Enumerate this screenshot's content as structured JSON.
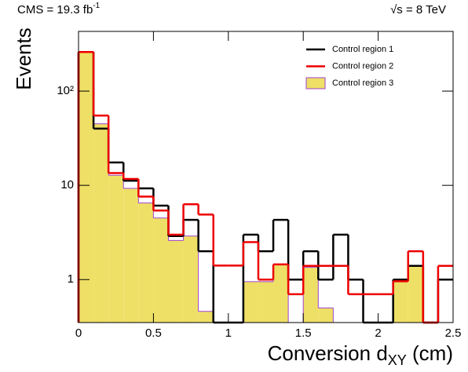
{
  "chart_data": {
    "type": "histogram",
    "title_left": [
      "CMS = 19.3 fb",
      "-1"
    ],
    "title_right": "√s = 8 TeV",
    "y_label": "Events",
    "x_label": [
      "Conversion d",
      "XY",
      " (cm)"
    ],
    "bins": [
      0,
      0.1,
      0.2,
      0.3,
      0.4,
      0.5,
      0.6,
      0.7,
      0.8,
      0.9,
      1,
      1.1,
      1.2,
      1.3,
      1.4,
      1.5,
      1.6,
      1.7,
      1.8,
      1.9,
      2,
      2.1,
      2.2,
      2.3,
      2.4,
      2.5
    ],
    "series": [
      {
        "name": "Control region 3",
        "color": "#eee066",
        "edge": "#a040d0",
        "fill": true,
        "values": [
          260,
          45,
          12.8,
          9.3,
          6.5,
          4.5,
          2.6,
          2.9,
          0.46,
          0,
          0,
          0.95,
          0.95,
          1.45,
          0,
          1.35,
          0.5,
          0,
          0,
          0,
          0,
          1.0,
          1.4,
          0,
          0
        ]
      },
      {
        "name": "Control region 1",
        "color": "#000000",
        "fill": false,
        "values": [
          260,
          40,
          17.5,
          11.2,
          9.3,
          6.1,
          2.9,
          4.3,
          2.0,
          0,
          0,
          3.0,
          2.0,
          4.3,
          1.0,
          2.0,
          1.0,
          3.0,
          1.0,
          0,
          0,
          1.0,
          1.4,
          0,
          1.0
        ]
      },
      {
        "name": "Control region 2",
        "color": "#ee0000",
        "fill": false,
        "values": [
          260,
          55,
          13.5,
          11.7,
          7.6,
          5.4,
          3.0,
          6.3,
          4.9,
          1.41,
          1.41,
          2.5,
          1.0,
          1.45,
          0.7,
          1.4,
          1.4,
          1.4,
          0.7,
          0.7,
          0.7,
          0.96,
          2.0,
          0,
          1.4
        ]
      }
    ],
    "legend_order": [
      1,
      2,
      0
    ],
    "xlim": [
      0,
      2.5
    ],
    "xticks": [
      0,
      0.5,
      1,
      1.5,
      2,
      2.5
    ],
    "ylim": [
      0.35,
      430
    ],
    "yticks": [
      1,
      10,
      {
        "value": 100,
        "label": "10²"
      }
    ],
    "log_y": true,
    "legend": "upper right"
  }
}
